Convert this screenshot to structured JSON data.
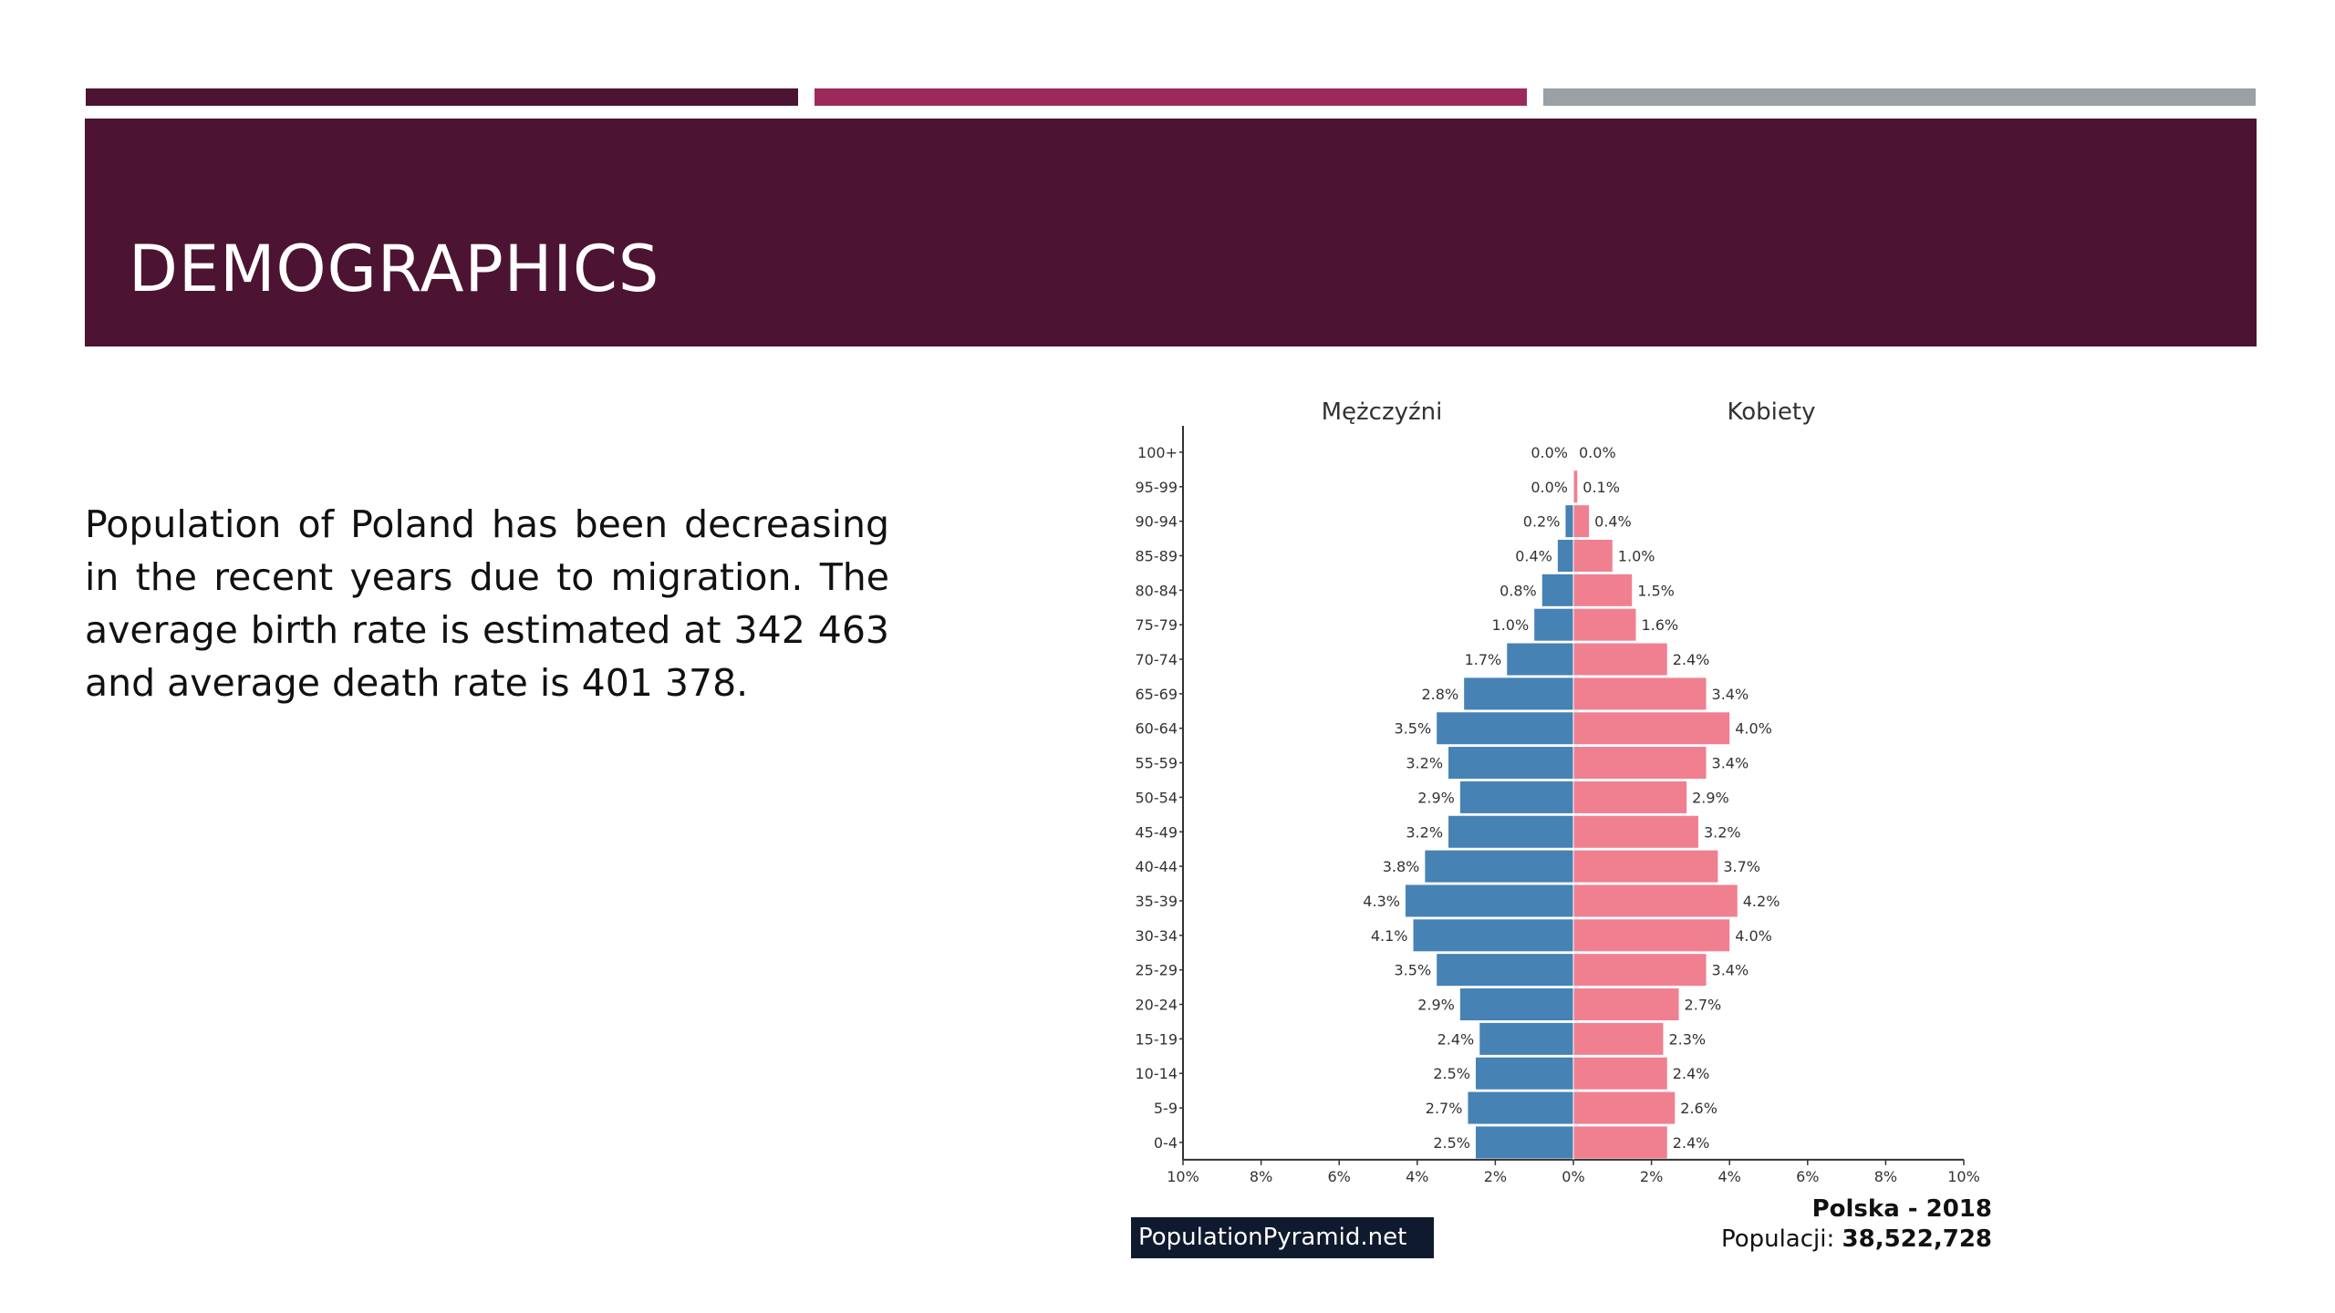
{
  "slide": {
    "title": "DEMOGRAPHICS",
    "body": "Population of Poland has been decreasing in the recent years due to migration. The average birth rate is estimated at 342 463 and average death rate is 401 378.",
    "colors": {
      "header": "#4c1432",
      "accent": "#9b2a5a",
      "grey": "#9aa0a4"
    }
  },
  "footer": {
    "brand": "PopulationPyramid.net",
    "country_year": "Polska - 2018",
    "population_label": "Populacji:",
    "population_value": "38,522,728"
  },
  "chart_data": {
    "type": "bar",
    "orientation": "horizontal-pyramid",
    "categories": [
      "100+",
      "95-99",
      "90-94",
      "85-89",
      "80-84",
      "75-79",
      "70-74",
      "65-69",
      "60-64",
      "55-59",
      "50-54",
      "45-49",
      "40-44",
      "35-39",
      "30-34",
      "25-29",
      "20-24",
      "15-19",
      "10-14",
      "5-9",
      "0-4"
    ],
    "series": [
      {
        "name": "Mężczyźni",
        "color": "#4682b4",
        "values": [
          0.0,
          0.0,
          0.2,
          0.4,
          0.8,
          1.0,
          1.7,
          2.8,
          3.5,
          3.2,
          2.9,
          3.2,
          3.8,
          4.3,
          4.1,
          3.5,
          2.9,
          2.4,
          2.5,
          2.7,
          2.5
        ],
        "labels": [
          "0.0%",
          "0.0%",
          "0.2%",
          "0.4%",
          "0.8%",
          "1.0%",
          "1.7%",
          "2.8%",
          "3.5%",
          "3.2%",
          "2.9%",
          "3.2%",
          "3.8%",
          "4.3%",
          "4.1%",
          "3.5%",
          "2.9%",
          "2.4%",
          "2.5%",
          "2.7%",
          "2.5%"
        ]
      },
      {
        "name": "Kobiety",
        "color": "#f08090",
        "values": [
          0.0,
          0.1,
          0.4,
          1.0,
          1.5,
          1.6,
          2.4,
          3.4,
          4.0,
          3.4,
          2.9,
          3.2,
          3.7,
          4.2,
          4.0,
          3.4,
          2.7,
          2.3,
          2.4,
          2.6,
          2.4
        ],
        "labels": [
          "0.0%",
          "0.1%",
          "0.4%",
          "1.0%",
          "1.5%",
          "1.6%",
          "2.4%",
          "3.4%",
          "4.0%",
          "3.4%",
          "2.9%",
          "3.2%",
          "3.7%",
          "4.2%",
          "4.0%",
          "3.4%",
          "2.7%",
          "2.3%",
          "2.4%",
          "2.6%",
          "2.4%"
        ]
      }
    ],
    "xticks": [
      "10%",
      "8%",
      "6%",
      "4%",
      "2%",
      "0%",
      "2%",
      "4%",
      "6%",
      "8%",
      "10%"
    ],
    "xlim": [
      -10,
      10
    ],
    "grid": false
  }
}
